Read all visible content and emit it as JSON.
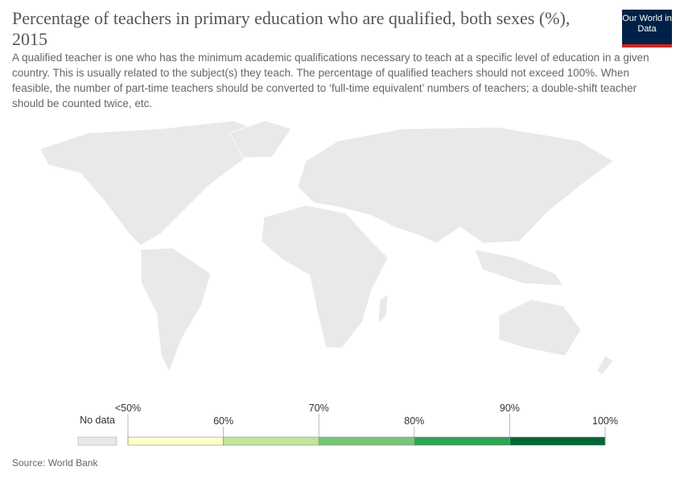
{
  "header": {
    "title": "Percentage of teachers in primary education who are qualified, both sexes (%), 2015",
    "subtitle": "A qualified teacher is one who has the minimum academic qualifications necessary to teach at a specific level of education in a given country. This is usually related to the subject(s) they teach. The percentage of qualified teachers should not exceed 100%. When feasible, the number of part-time teachers should be converted to ‘full-time equivalent’ numbers of teachers; a double-shift teacher should be counted twice, etc.",
    "logo": "Our World in Data"
  },
  "chart_data": {
    "type": "map",
    "legend": {
      "no_data_label": "No data",
      "no_data_color": "#e9e9e9",
      "ticks": [
        {
          "value": 50,
          "label": "<50%"
        },
        {
          "value": 60,
          "label": "60%"
        },
        {
          "value": 70,
          "label": "70%"
        },
        {
          "value": 80,
          "label": "80%"
        },
        {
          "value": 90,
          "label": "90%"
        },
        {
          "value": 100,
          "label": "100%"
        }
      ],
      "colors": [
        "#ffffcc",
        "#c2e699",
        "#78c679",
        "#31a354",
        "#006837"
      ]
    }
  },
  "footer": {
    "source": "Source: World Bank"
  }
}
